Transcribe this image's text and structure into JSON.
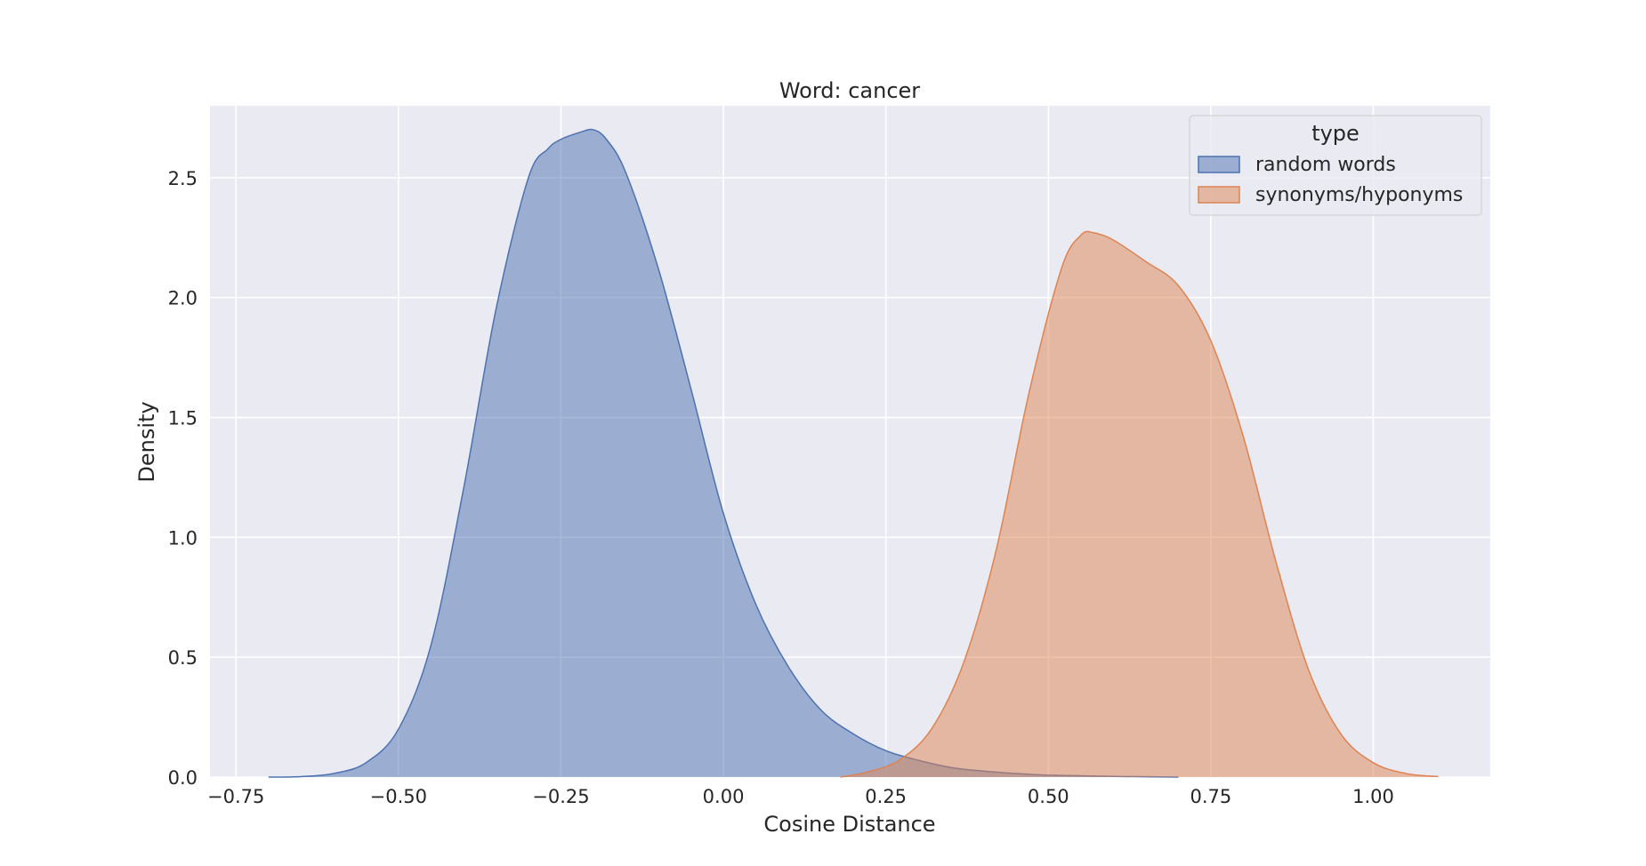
{
  "chart_data": {
    "type": "area",
    "title": "Word: cancer",
    "xlabel": "Cosine Distance",
    "ylabel": "Density",
    "xlim": [
      -0.79,
      1.18
    ],
    "ylim": [
      0.0,
      2.8
    ],
    "xticks": [
      -0.75,
      -0.5,
      -0.25,
      0.0,
      0.25,
      0.5,
      0.75,
      1.0
    ],
    "xtick_labels": [
      "−0.75",
      "−0.50",
      "−0.25",
      "0.00",
      "0.25",
      "0.50",
      "0.75",
      "1.00"
    ],
    "yticks": [
      0.0,
      0.5,
      1.0,
      1.5,
      2.0,
      2.5
    ],
    "ytick_labels": [
      "0.0",
      "0.5",
      "1.0",
      "1.5",
      "2.0",
      "2.5"
    ],
    "grid": true,
    "legend": {
      "title": "type",
      "placement": "top-right"
    },
    "series": [
      {
        "name": "random words",
        "color": "#4c72b0",
        "x": [
          -0.7,
          -0.65,
          -0.6,
          -0.55,
          -0.5,
          -0.45,
          -0.4,
          -0.35,
          -0.3,
          -0.27,
          -0.25,
          -0.22,
          -0.2,
          -0.18,
          -0.15,
          -0.1,
          -0.05,
          0.0,
          0.05,
          0.1,
          0.15,
          0.2,
          0.25,
          0.3,
          0.35,
          0.4,
          0.45,
          0.5,
          0.6,
          0.7
        ],
        "values": [
          0.0,
          0.002,
          0.015,
          0.06,
          0.2,
          0.55,
          1.2,
          1.95,
          2.5,
          2.62,
          2.66,
          2.69,
          2.7,
          2.66,
          2.52,
          2.12,
          1.62,
          1.1,
          0.72,
          0.46,
          0.28,
          0.18,
          0.11,
          0.07,
          0.04,
          0.025,
          0.015,
          0.008,
          0.003,
          0.0
        ]
      },
      {
        "name": "synonyms/hyponyms",
        "color": "#dd8452",
        "x": [
          0.18,
          0.22,
          0.27,
          0.32,
          0.37,
          0.42,
          0.47,
          0.52,
          0.55,
          0.57,
          0.6,
          0.65,
          0.7,
          0.75,
          0.8,
          0.85,
          0.9,
          0.95,
          1.0,
          1.05,
          1.1
        ],
        "values": [
          0.0,
          0.02,
          0.07,
          0.2,
          0.48,
          0.95,
          1.6,
          2.12,
          2.26,
          2.27,
          2.24,
          2.15,
          2.05,
          1.82,
          1.42,
          0.9,
          0.45,
          0.18,
          0.06,
          0.015,
          0.002
        ]
      }
    ]
  }
}
